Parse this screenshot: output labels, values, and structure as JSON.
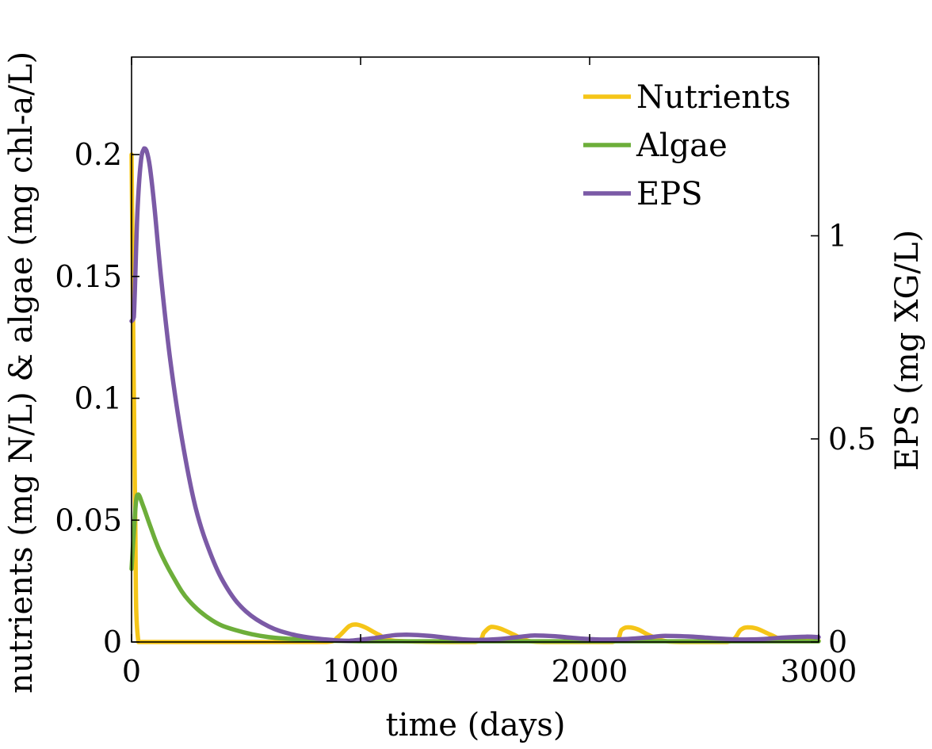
{
  "chart_data": {
    "type": "line",
    "xlabel": "time (days)",
    "ylabel_left": "nutrients (mg N/L) & algae (mg chl-a/L)",
    "ylabel_right": "EPS (mg XG/L)",
    "xlim": [
      0,
      3000
    ],
    "ylim_left": [
      0,
      0.24
    ],
    "ylim_right": [
      0,
      1.44
    ],
    "x_ticks": [
      0,
      1000,
      2000,
      3000
    ],
    "x_tick_labels": [
      "0",
      "1000",
      "2000",
      "3000"
    ],
    "y_left_ticks": [
      0,
      0.05,
      0.1,
      0.15,
      0.2
    ],
    "y_left_tick_labels": [
      "0",
      "0.05",
      "0.1",
      "0.15",
      "0.2"
    ],
    "y_right_ticks": [
      0,
      0.5,
      1
    ],
    "y_right_tick_labels": [
      "0",
      "0.5",
      "1"
    ],
    "legend_position": "top-right",
    "grid": false,
    "series": [
      {
        "name": "Nutrients",
        "axis": "left",
        "color": "#F5C518",
        "x": [
          0,
          15,
          30,
          100,
          500,
          850,
          900,
          950,
          980,
          1020,
          1080,
          1150,
          1500,
          1540,
          1570,
          1610,
          1670,
          1720,
          1800,
          2100,
          2140,
          2170,
          2210,
          2260,
          2320,
          2400,
          2600,
          2660,
          2690,
          2730,
          2790,
          2860,
          3000
        ],
        "y": [
          0.2,
          0.06,
          0.0,
          0.0,
          0.0,
          0.0,
          0.002,
          0.0065,
          0.0072,
          0.006,
          0.003,
          0.0005,
          0.0,
          0.004,
          0.0062,
          0.0055,
          0.003,
          0.0008,
          0.0,
          0.0,
          0.005,
          0.006,
          0.0052,
          0.0028,
          0.0006,
          0.0,
          0.0,
          0.005,
          0.006,
          0.0055,
          0.003,
          0.0006,
          0.0005
        ]
      },
      {
        "name": "Algae",
        "axis": "left",
        "color": "#6DAE3A",
        "x": [
          0,
          10,
          20,
          30,
          50,
          80,
          120,
          180,
          250,
          350,
          450,
          600,
          800,
          1000,
          1500,
          2000,
          2500,
          3000
        ],
        "y": [
          0.03,
          0.045,
          0.058,
          0.0605,
          0.056,
          0.048,
          0.038,
          0.027,
          0.017,
          0.009,
          0.005,
          0.002,
          0.0008,
          0.0003,
          0.0003,
          0.0003,
          0.0003,
          0.0003
        ]
      },
      {
        "name": "EPS",
        "axis": "right",
        "color": "#7B5AA6",
        "x": [
          0,
          10,
          25,
          40,
          55,
          65,
          80,
          100,
          130,
          170,
          220,
          280,
          350,
          420,
          500,
          600,
          700,
          800,
          900,
          950,
          1050,
          1150,
          1200,
          1300,
          1400,
          1500,
          1600,
          1700,
          1760,
          1850,
          1950,
          2050,
          2150,
          2250,
          2330,
          2450,
          2550,
          2650,
          2750,
          2850,
          2950,
          3000
        ],
        "y": [
          0.79,
          0.8,
          1.05,
          1.18,
          1.215,
          1.21,
          1.17,
          1.07,
          0.89,
          0.69,
          0.5,
          0.33,
          0.21,
          0.13,
          0.075,
          0.038,
          0.019,
          0.009,
          0.004,
          0.003,
          0.009,
          0.017,
          0.018,
          0.015,
          0.009,
          0.005,
          0.007,
          0.013,
          0.016,
          0.014,
          0.009,
          0.006,
          0.007,
          0.011,
          0.015,
          0.013,
          0.009,
          0.006,
          0.007,
          0.011,
          0.013,
          0.012
        ]
      }
    ]
  }
}
